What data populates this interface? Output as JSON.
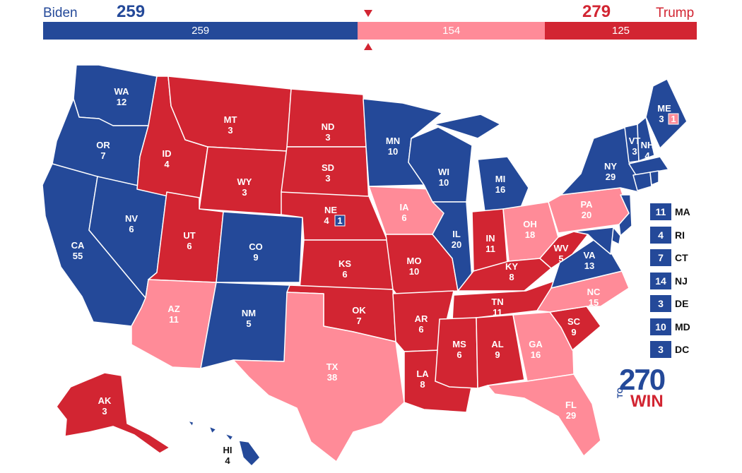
{
  "colors": {
    "biden": "#244999",
    "trump": "#d22532",
    "lean_trump": "#ff8b98",
    "light_bg": "#ffffff"
  },
  "header": {
    "biden_name": "Biden",
    "biden_total": "259",
    "trump_name": "Trump",
    "trump_total": "279",
    "bar": [
      {
        "label": "259",
        "value": 259,
        "color": "#244999"
      },
      {
        "label": "154",
        "value": 154,
        "color": "#ff8b98"
      },
      {
        "label": "125",
        "value": 125,
        "color": "#d22532"
      }
    ]
  },
  "states": {
    "WA": {
      "abbr": "WA",
      "ev": "12",
      "party": "biden"
    },
    "OR": {
      "abbr": "OR",
      "ev": "7",
      "party": "biden"
    },
    "CA": {
      "abbr": "CA",
      "ev": "55",
      "party": "biden"
    },
    "NV": {
      "abbr": "NV",
      "ev": "6",
      "party": "biden"
    },
    "ID": {
      "abbr": "ID",
      "ev": "4",
      "party": "trump"
    },
    "MT": {
      "abbr": "MT",
      "ev": "3",
      "party": "trump"
    },
    "WY": {
      "abbr": "WY",
      "ev": "3",
      "party": "trump"
    },
    "UT": {
      "abbr": "UT",
      "ev": "6",
      "party": "trump"
    },
    "AZ": {
      "abbr": "AZ",
      "ev": "11",
      "party": "lean"
    },
    "CO": {
      "abbr": "CO",
      "ev": "9",
      "party": "biden"
    },
    "NM": {
      "abbr": "NM",
      "ev": "5",
      "party": "biden"
    },
    "ND": {
      "abbr": "ND",
      "ev": "3",
      "party": "trump"
    },
    "SD": {
      "abbr": "SD",
      "ev": "3",
      "party": "trump"
    },
    "NE": {
      "abbr": "NE",
      "ev": "4",
      "party": "trump",
      "cd_ev": "1"
    },
    "KS": {
      "abbr": "KS",
      "ev": "6",
      "party": "trump"
    },
    "OK": {
      "abbr": "OK",
      "ev": "7",
      "party": "trump"
    },
    "TX": {
      "abbr": "TX",
      "ev": "38",
      "party": "lean"
    },
    "MN": {
      "abbr": "MN",
      "ev": "10",
      "party": "biden"
    },
    "IA": {
      "abbr": "IA",
      "ev": "6",
      "party": "lean"
    },
    "MO": {
      "abbr": "MO",
      "ev": "10",
      "party": "trump"
    },
    "AR": {
      "abbr": "AR",
      "ev": "6",
      "party": "trump"
    },
    "LA": {
      "abbr": "LA",
      "ev": "8",
      "party": "trump"
    },
    "WI": {
      "abbr": "WI",
      "ev": "10",
      "party": "biden"
    },
    "IL": {
      "abbr": "IL",
      "ev": "20",
      "party": "biden"
    },
    "MI": {
      "abbr": "MI",
      "ev": "16",
      "party": "biden"
    },
    "IN": {
      "abbr": "IN",
      "ev": "11",
      "party": "trump"
    },
    "OH": {
      "abbr": "OH",
      "ev": "18",
      "party": "lean"
    },
    "KY": {
      "abbr": "KY",
      "ev": "8",
      "party": "trump"
    },
    "TN": {
      "abbr": "TN",
      "ev": "11",
      "party": "trump"
    },
    "MS": {
      "abbr": "MS",
      "ev": "6",
      "party": "trump"
    },
    "AL": {
      "abbr": "AL",
      "ev": "9",
      "party": "trump"
    },
    "GA": {
      "abbr": "GA",
      "ev": "16",
      "party": "lean"
    },
    "FL": {
      "abbr": "FL",
      "ev": "29",
      "party": "lean"
    },
    "SC": {
      "abbr": "SC",
      "ev": "9",
      "party": "trump"
    },
    "NC": {
      "abbr": "NC",
      "ev": "15",
      "party": "lean"
    },
    "VA": {
      "abbr": "VA",
      "ev": "13",
      "party": "biden"
    },
    "WV": {
      "abbr": "WV",
      "ev": "5",
      "party": "trump"
    },
    "PA": {
      "abbr": "PA",
      "ev": "20",
      "party": "lean"
    },
    "NY": {
      "abbr": "NY",
      "ev": "29",
      "party": "biden"
    },
    "VT": {
      "abbr": "VT",
      "ev": "3",
      "party": "biden"
    },
    "NH": {
      "abbr": "NH",
      "ev": "4",
      "party": "biden"
    },
    "ME": {
      "abbr": "ME",
      "ev": "3",
      "party": "biden",
      "cd_ev": "1"
    },
    "AK": {
      "abbr": "AK",
      "ev": "3",
      "party": "trump"
    },
    "HI": {
      "abbr": "HI",
      "ev": "4",
      "party": "biden"
    }
  },
  "small_states": [
    {
      "ev": "11",
      "abbr": "MA"
    },
    {
      "ev": "4",
      "abbr": "RI"
    },
    {
      "ev": "7",
      "abbr": "CT"
    },
    {
      "ev": "14",
      "abbr": "NJ"
    },
    {
      "ev": "3",
      "abbr": "DE"
    },
    {
      "ev": "10",
      "abbr": "MD"
    },
    {
      "ev": "3",
      "abbr": "DC"
    }
  ],
  "logo": {
    "number": "270",
    "to": "TO",
    "win": "WIN"
  }
}
